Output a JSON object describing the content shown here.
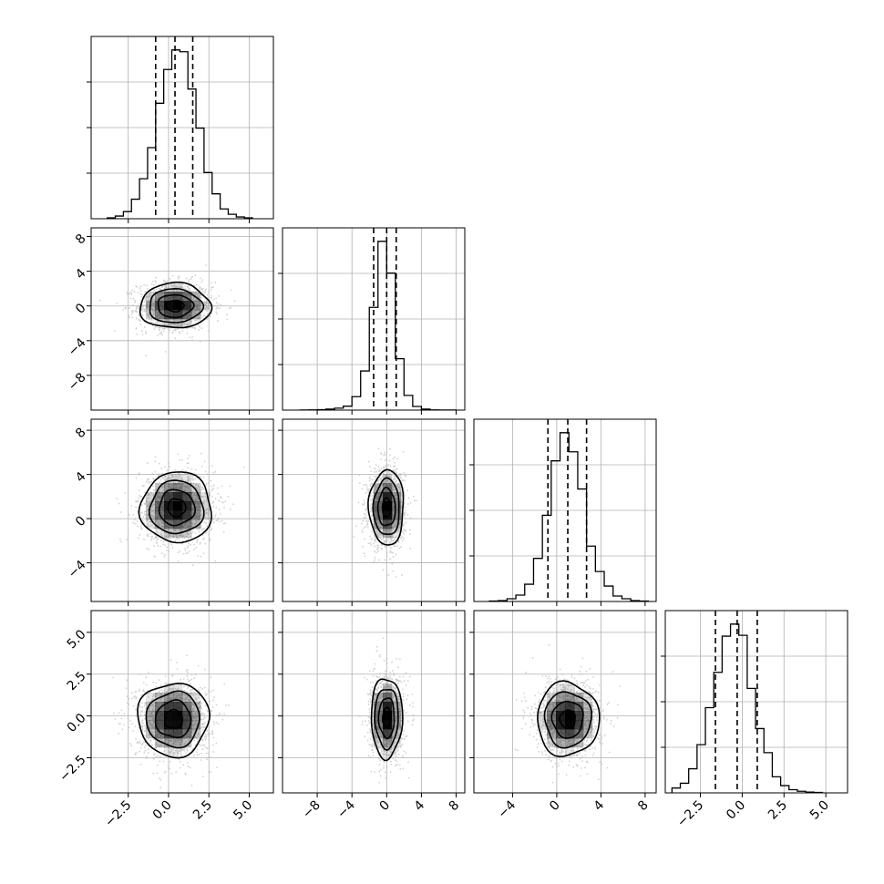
{
  "figure": {
    "type": "corner-plot",
    "background": "#ffffff"
  },
  "colors": {
    "frame": "#000000",
    "grid": "#b0b0b0",
    "hist_line": "#000000",
    "quantile_line": "#000000",
    "contour": "#000000",
    "density": "#000000",
    "scatter": "#bdbdbd"
  },
  "chart_data": {
    "type": "corner",
    "grid": true,
    "dimensions": [
      {
        "range": [
          -4.8,
          6.5
        ],
        "ticks": [
          -2.5,
          0.0,
          2.5,
          5.0
        ],
        "tick_labels": [
          "−2.5",
          "0.0",
          "2.5",
          "5.0"
        ],
        "mean": 0.5,
        "sigma": 1.2,
        "quantiles": [
          -0.8,
          0.4,
          1.5
        ]
      },
      {
        "range": [
          -12,
          9
        ],
        "ticks": [
          -8,
          -4,
          0,
          4,
          8
        ],
        "tick_labels": [
          "−8",
          "−4",
          "0",
          "4",
          "8"
        ],
        "mean": 0.0,
        "sigma": 1.5,
        "quantiles": [
          -1.5,
          0.0,
          1.1
        ]
      },
      {
        "range": [
          -7.5,
          9
        ],
        "ticks": [
          -4,
          0,
          4,
          8
        ],
        "tick_labels": [
          "−4",
          "0",
          "4",
          "8"
        ],
        "mean": 1.1,
        "sigma": 1.6,
        "quantiles": [
          -0.8,
          1.0,
          2.7
        ]
      },
      {
        "range": [
          -4.6,
          6.3
        ],
        "ticks": [
          -2.5,
          0.0,
          2.5,
          5.0
        ],
        "tick_labels": [
          "−2.5",
          "0.0",
          "2.5",
          "5.0"
        ],
        "mean": -0.3,
        "sigma": 1.2,
        "quantiles": [
          -1.6,
          -0.3,
          0.9
        ]
      }
    ],
    "histograms": [
      {
        "dim": 0,
        "bin_edges": [
          -3.8,
          -3.3,
          -2.8,
          -2.3,
          -1.8,
          -1.3,
          -0.8,
          -0.3,
          0.2,
          0.7,
          1.2,
          1.7,
          2.2,
          2.7,
          3.2,
          3.7,
          4.2,
          4.7,
          5.2
        ],
        "counts": [
          1,
          3,
          8,
          22,
          45,
          80,
          130,
          168,
          190,
          188,
          146,
          102,
          52,
          28,
          11,
          5,
          2,
          1
        ],
        "quantiles": [
          -0.8,
          0.4,
          1.5
        ]
      },
      {
        "dim": 1,
        "bin_edges": [
          -10,
          -9,
          -8,
          -7,
          -6,
          -5,
          -4,
          -3,
          -2,
          -1,
          0,
          1,
          2,
          3,
          4,
          5,
          6,
          7,
          8
        ],
        "counts": [
          0.5,
          1,
          2,
          4,
          8,
          16,
          55,
          160,
          420,
          690,
          560,
          210,
          60,
          15,
          4,
          1,
          0.5,
          0.5
        ],
        "quantiles": [
          -1.5,
          0.0,
          1.1
        ]
      },
      {
        "dim": 2,
        "bin_edges": [
          -6.1,
          -5.3,
          -4.5,
          -3.7,
          -2.9,
          -2.1,
          -1.3,
          -0.5,
          0.3,
          1.1,
          1.9,
          2.7,
          3.5,
          4.3,
          5.1,
          5.9,
          6.7,
          7.5,
          8.3
        ],
        "counts": [
          1,
          2,
          6,
          14,
          38,
          95,
          190,
          310,
          372,
          330,
          248,
          122,
          66,
          34,
          12,
          6,
          2,
          1
        ],
        "quantiles": [
          -0.8,
          1.0,
          2.7
        ]
      },
      {
        "dim": 3,
        "bin_edges": [
          -4.2,
          -3.7,
          -3.2,
          -2.7,
          -2.2,
          -1.7,
          -1.2,
          -0.7,
          -0.2,
          0.3,
          0.8,
          1.3,
          1.8,
          2.3,
          2.8,
          3.3,
          3.8,
          4.3,
          4.8
        ],
        "counts": [
          6,
          12,
          30,
          60,
          106,
          150,
          195,
          210,
          196,
          130,
          80,
          50,
          20,
          9,
          4,
          2,
          1,
          0.5
        ],
        "quantiles": [
          -1.6,
          -0.3,
          0.9
        ]
      }
    ],
    "pairs": [
      {
        "row": 1,
        "col": 0,
        "center": [
          0.4,
          0.0
        ],
        "sigma": [
          1.1,
          1.3
        ],
        "corr": 0.0
      },
      {
        "row": 2,
        "col": 0,
        "center": [
          0.5,
          1.0
        ],
        "sigma": [
          1.1,
          1.6
        ],
        "corr": 0.0
      },
      {
        "row": 2,
        "col": 1,
        "center": [
          0.0,
          1.0
        ],
        "sigma": [
          1.0,
          1.7
        ],
        "corr": 0.0
      },
      {
        "row": 3,
        "col": 0,
        "center": [
          0.3,
          -0.2
        ],
        "sigma": [
          1.1,
          1.1
        ],
        "corr": 0.0
      },
      {
        "row": 3,
        "col": 1,
        "center": [
          0.0,
          -0.1
        ],
        "sigma": [
          0.9,
          1.2
        ],
        "corr": 0.0
      },
      {
        "row": 3,
        "col": 2,
        "center": [
          1.0,
          -0.2
        ],
        "sigma": [
          1.4,
          1.1
        ],
        "corr": 0.0
      }
    ]
  }
}
